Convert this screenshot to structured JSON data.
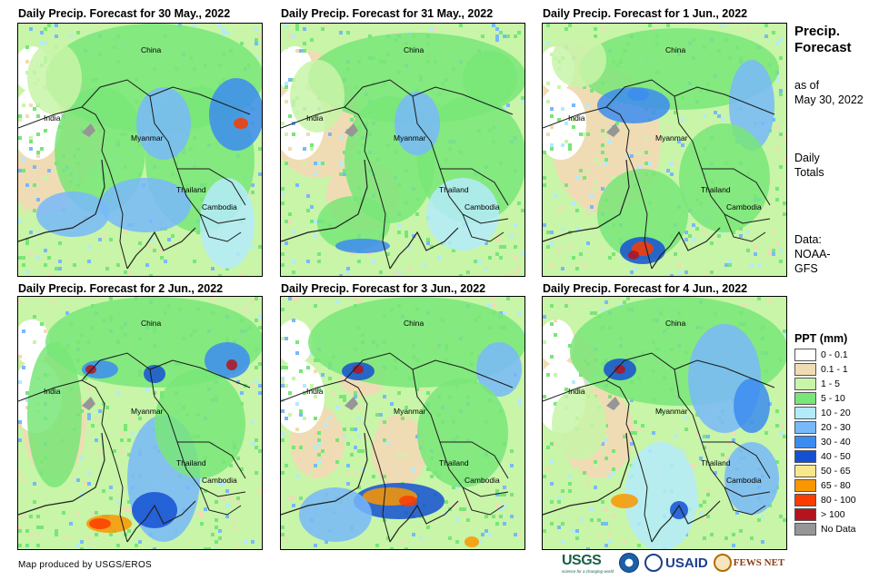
{
  "panels": [
    {
      "title": "Daily Precip. Forecast for 30 May., 2022"
    },
    {
      "title": "Daily Precip. Forecast for 31 May., 2022"
    },
    {
      "title": "Daily Precip. Forecast for 1 Jun., 2022"
    },
    {
      "title": "Daily Precip. Forecast for 2 Jun., 2022"
    },
    {
      "title": "Daily Precip. Forecast for 3 Jun., 2022"
    },
    {
      "title": "Daily Precip. Forecast for 4 Jun., 2022"
    }
  ],
  "map_labels": {
    "china": "China",
    "india": "India",
    "myanmar": "Myanmar",
    "thailand": "Thailand",
    "cambodia": "Cambodia"
  },
  "side": {
    "title_line1": "Precip.",
    "title_line2": "Forecast",
    "asof_line1": "as of",
    "asof_line2": "May 30, 2022",
    "daily_line1": "Daily",
    "daily_line2": "Totals",
    "data_line1": "Data:",
    "data_line2": "NOAA-",
    "data_line3": "GFS"
  },
  "legend": {
    "title": "PPT (mm)",
    "items": [
      {
        "label": "0 - 0.1",
        "color": "#ffffff"
      },
      {
        "label": "0.1 - 1",
        "color": "#f0dcb4"
      },
      {
        "label": "1 - 5",
        "color": "#c8f5a8"
      },
      {
        "label": "5 - 10",
        "color": "#78e678"
      },
      {
        "label": "10 - 20",
        "color": "#b4ebfa"
      },
      {
        "label": "20 - 30",
        "color": "#78b9fa"
      },
      {
        "label": "30 - 40",
        "color": "#3c8cf0"
      },
      {
        "label": "40 - 50",
        "color": "#1450d2"
      },
      {
        "label": "50 - 65",
        "color": "#fae68c"
      },
      {
        "label": "65 - 80",
        "color": "#fa9600"
      },
      {
        "label": "80 - 100",
        "color": "#fa3c00"
      },
      {
        "label": "> 100",
        "color": "#b4141e"
      },
      {
        "label": "No Data",
        "color": "#969696"
      }
    ]
  },
  "credit": "Map produced by USGS/EROS",
  "logos": {
    "usgs": "USGS",
    "usgs_tagline": "science for a changing world",
    "usaid": "USAID",
    "fewsnet": "FEWS NET"
  }
}
